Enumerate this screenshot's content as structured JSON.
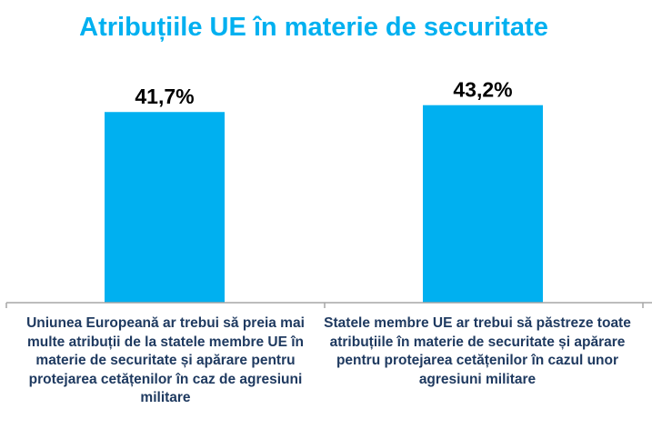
{
  "chart_data": {
    "type": "bar",
    "title": "Atribuțiile UE în materie de securitate",
    "categories": [
      "Uniunea Europeană ar trebui să preia mai multe atribuții de la statele membre UE în materie de securitate și apărare pentru protejarea cetățenilor în caz de agresiuni militare",
      "Statele membre UE ar trebui să păstreze toate atribuțiile în materie de securitate și apărare pentru protejarea cetățenilor în cazul unor agresiuni militare"
    ],
    "values": [
      41.7,
      43.2
    ],
    "data_labels": [
      "41,7%",
      "43,2%"
    ],
    "ylim": [
      0,
      50
    ],
    "grid": false,
    "bar_color": "#00b0f0",
    "title_color": "#00b0f0",
    "label_color": "#1f3a60"
  }
}
